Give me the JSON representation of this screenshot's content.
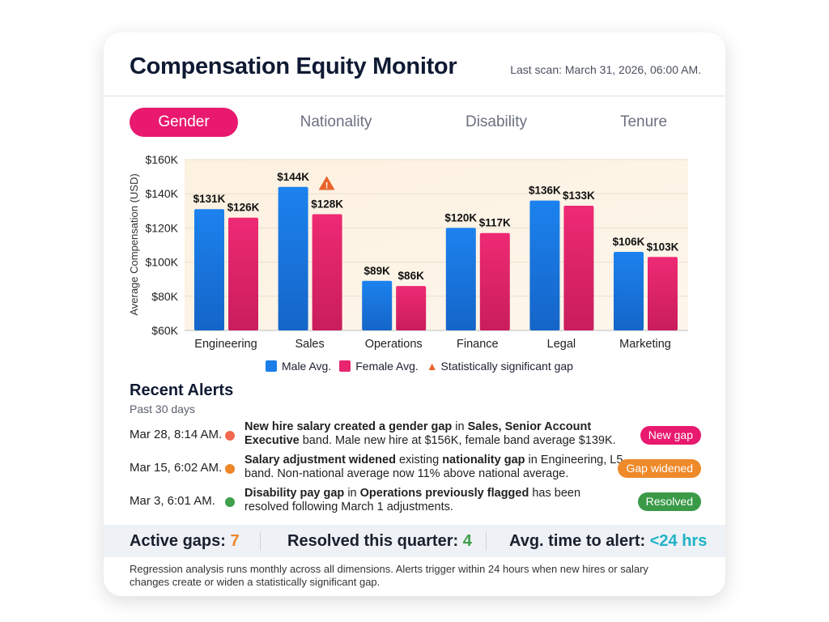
{
  "header": {
    "title": "Compensation Equity Monitor",
    "last_scan": "Last scan: March 31, 2026, 06:00 AM."
  },
  "tabs": [
    {
      "label": "Gender",
      "active": true
    },
    {
      "label": "Nationality"
    },
    {
      "label": "Disability"
    },
    {
      "label": "Tenure"
    }
  ],
  "colors": {
    "male": "#1a7de8",
    "female": "#e8256f",
    "warning": "#e8632a",
    "accent": "#e8196e"
  },
  "chart_data": {
    "type": "bar",
    "ylabel": "Average Compensation (USD)",
    "ylim": [
      60,
      160
    ],
    "yticks": [
      "$60K",
      "$80K",
      "$100K",
      "$120K",
      "$140K",
      "$160K"
    ],
    "grid": true,
    "legend_placement": "bottom",
    "categories": [
      "Engineering",
      "Sales",
      "Operations",
      "Finance",
      "Legal",
      "Marketing"
    ],
    "series": [
      {
        "name": "Male Avg.",
        "values": [
          131,
          144,
          89,
          120,
          136,
          106
        ],
        "labels": [
          "$131K",
          "$144K",
          "$89K",
          "$120K",
          "$136K",
          "$106K"
        ]
      },
      {
        "name": "Female Avg.",
        "values": [
          126,
          128,
          86,
          117,
          133,
          103
        ],
        "labels": [
          "$126K",
          "$128K",
          "$86K",
          "$117K",
          "$133K",
          "$103K"
        ]
      }
    ],
    "annotations": [
      {
        "category": "Sales",
        "icon": "warning-icon",
        "meaning": "Statistically significant gap"
      }
    ],
    "legend": [
      "Male Avg.",
      "Female Avg.",
      "Statistically significant gap"
    ]
  },
  "alerts": {
    "title": "Recent Alerts",
    "subtitle": "Past 30 days",
    "items": [
      {
        "date": "Mar 28, 8:14 AM.",
        "dot": "#f0694f",
        "badge": "New gap",
        "badge_color": "#e8196e",
        "segments": [
          {
            "t": "New hire salary created a gender gap",
            "b": true
          },
          {
            "t": " in "
          },
          {
            "t": "Sales, Senior Account Executive",
            "b": true
          },
          {
            "t": " band. Male new hire at $156K, female band average $139K."
          }
        ]
      },
      {
        "date": "Mar 15, 6:02 AM.",
        "dot": "#ee8526",
        "badge": "Gap widened",
        "badge_color": "#ee8a2a",
        "segments": [
          {
            "t": "Salary adjustment widened",
            "b": true
          },
          {
            "t": " existing "
          },
          {
            "t": "nationality gap",
            "b": true
          },
          {
            "t": " in Engineering, L5 band. Non-national average now 11% above national average."
          }
        ]
      },
      {
        "date": "Mar 3, 6:01 AM.",
        "dot": "#3fa04a",
        "badge": "Resolved",
        "badge_color": "#3a9a48",
        "segments": [
          {
            "t": "Disability pay gap",
            "b": true
          },
          {
            "t": " in "
          },
          {
            "t": "Operations previously flagged",
            "b": true
          },
          {
            "t": " has been resolved following March 1 adjustments."
          }
        ]
      }
    ]
  },
  "stats": [
    {
      "label": "Active gaps: ",
      "value": "7",
      "color": "#ee8526"
    },
    {
      "label": "Resolved this quarter: ",
      "value": "4",
      "color": "#3fa04a"
    },
    {
      "label": "Avg. time to alert: ",
      "value": "<24 hrs",
      "color": "#1fb3c8"
    }
  ],
  "footnote": "Regression analysis runs monthly across all dimensions. Alerts trigger within 24 hours when new hires or salary changes create or widen a statistically significant gap."
}
